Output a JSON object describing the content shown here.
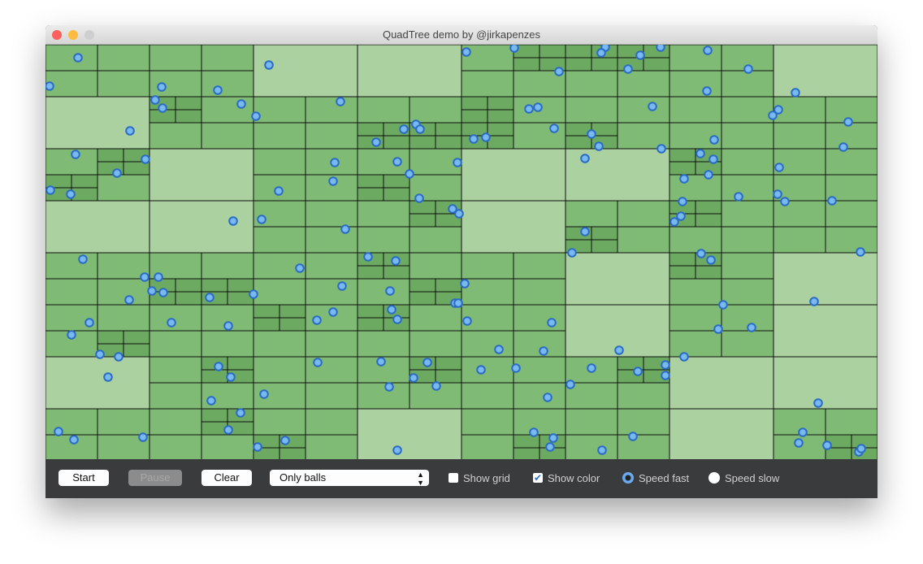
{
  "window": {
    "title": "QuadTree demo by @jirkapenzes"
  },
  "toolbar": {
    "start": "Start",
    "pause": "Pause",
    "clear": "Clear",
    "mode": "Only balls",
    "show_grid": "Show grid",
    "show_color": "Show color",
    "speed_fast": "Speed fast",
    "speed_slow": "Speed slow"
  }
}
